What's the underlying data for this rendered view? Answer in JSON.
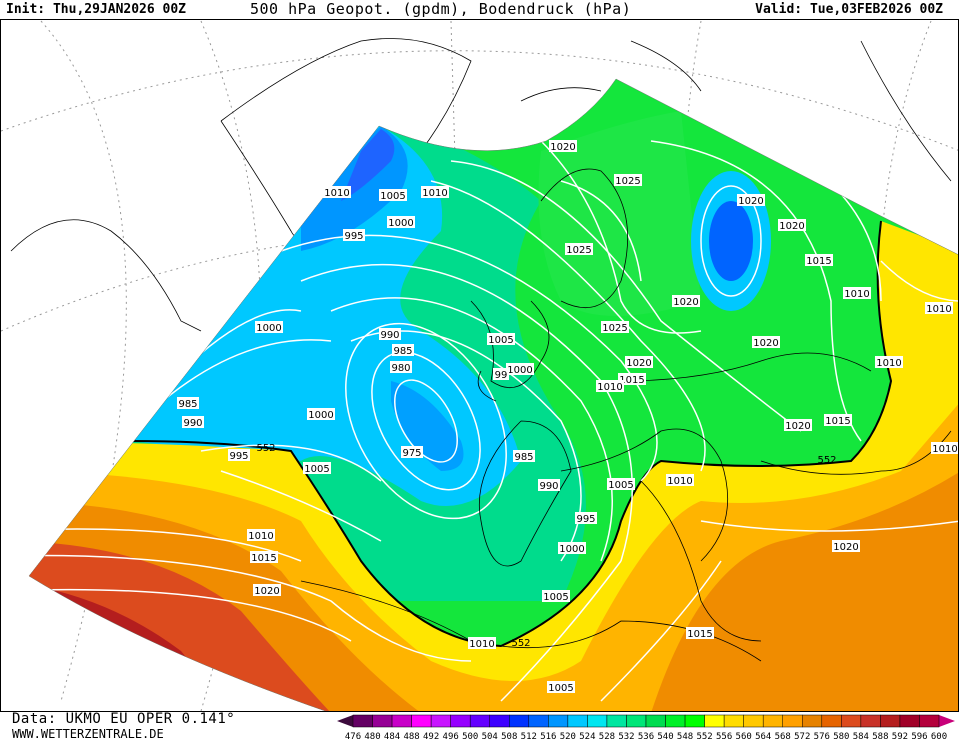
{
  "header": {
    "init": "Init: Thu,29JAN2026 00Z",
    "title": "500 hPa Geopot. (gpdm), Bodendruck (hPa)",
    "valid": "Valid: Tue,03FEB2026 00Z"
  },
  "footer": {
    "data_source": "Data: UKMO EU OPER 0.141°",
    "website": "WWW.WETTERZENTRALE.DE"
  },
  "colorbar": {
    "labels": [
      "476",
      "480",
      "484",
      "488",
      "492",
      "496",
      "500",
      "504",
      "508",
      "512",
      "516",
      "520",
      "524",
      "528",
      "532",
      "536",
      "540",
      "548",
      "552",
      "556",
      "560",
      "564",
      "568",
      "572",
      "576",
      "580",
      "584",
      "588",
      "592",
      "596",
      "600"
    ],
    "colors": [
      "#640064",
      "#960096",
      "#c800c8",
      "#ff00ff",
      "#c814ff",
      "#9600ff",
      "#6400ff",
      "#3c00ff",
      "#0032ff",
      "#0064ff",
      "#0096ff",
      "#00c8ff",
      "#00e6f0",
      "#00e6a0",
      "#00e678",
      "#00dc50",
      "#00f028",
      "#00ff00",
      "#ffff00",
      "#ffdc00",
      "#ffc800",
      "#ffb400",
      "#ffa000",
      "#e68200",
      "#e66400",
      "#dc4b1e",
      "#c83228",
      "#b41e1e",
      "#a00028",
      "#b4003c"
    ],
    "arrow_low": "#3c0a3c",
    "arrow_high": "#c8007a"
  },
  "map": {
    "colors": {
      "green": "#14e63c",
      "lightgreen": "#00dc6e",
      "cyan": "#00c8ff",
      "aqua": "#00e6e6",
      "blue": "#0078ff",
      "deepblue": "#0050ff",
      "yellow": "#ffe600",
      "orange": "#ffa000",
      "darkorange": "#e66400",
      "red": "#c83228",
      "darkred": "#a01e1e"
    },
    "pressure_labels": [
      "1020",
      "1025",
      "1020",
      "1020",
      "1010",
      "1005",
      "1010",
      "1000",
      "995",
      "1025",
      "1015",
      "1010",
      "1010",
      "1020",
      "1025",
      "1000",
      "990",
      "985",
      "980",
      "1005",
      "1000",
      "99",
      "1020",
      "1015",
      "1010",
      "1020",
      "1010",
      "985",
      "990",
      "1000",
      "975",
      "995",
      "1005",
      "985",
      "990",
      "1005",
      "1010",
      "1015",
      "1020",
      "1010",
      "995",
      "1000",
      "1010",
      "1015",
      "1020",
      "1020",
      "1005",
      "1010",
      "1015",
      "1005"
    ],
    "geopot_labels": [
      "552",
      "552",
      "552"
    ]
  }
}
